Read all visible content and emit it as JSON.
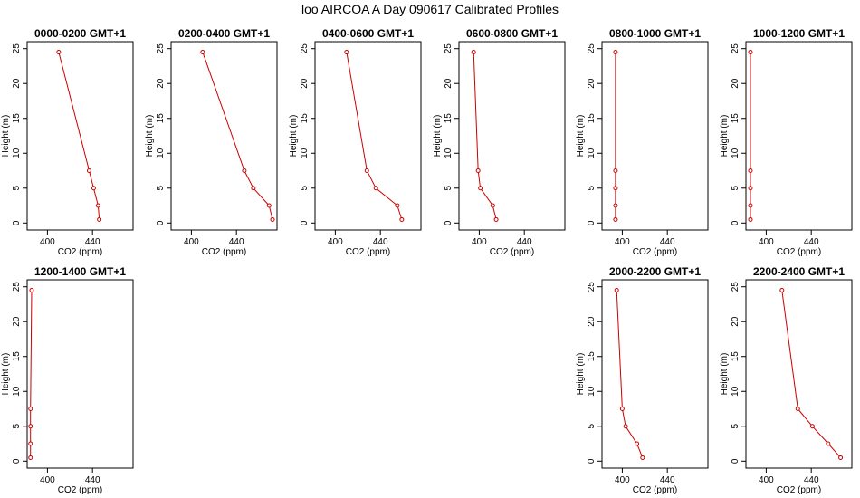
{
  "title": "loo AIRCOA A  Day 090617  Calibrated Profiles",
  "colors": {
    "line": "#cc0000",
    "axis": "#000000"
  },
  "chart_data": [
    {
      "type": "line",
      "title": "0000-0200 GMT+1",
      "xlabel": "CO2 (ppm)",
      "ylabel": "Height (m)",
      "xlim": [
        382,
        476
      ],
      "ylim": [
        -1,
        26
      ],
      "xticks": [
        400,
        440
      ],
      "yticks": [
        0,
        5,
        10,
        15,
        20,
        25
      ],
      "x": [
        410,
        437,
        441,
        445,
        446
      ],
      "y": [
        24.5,
        7.5,
        5,
        2.5,
        0.5
      ]
    },
    {
      "type": "line",
      "title": "0200-0400 GMT+1",
      "xlabel": "CO2 (ppm)",
      "ylabel": "Height (m)",
      "xlim": [
        382,
        476
      ],
      "ylim": [
        -1,
        26
      ],
      "xticks": [
        400,
        440
      ],
      "yticks": [
        0,
        5,
        10,
        15,
        20,
        25
      ],
      "x": [
        410,
        447,
        455,
        469,
        472
      ],
      "y": [
        24.5,
        7.5,
        5,
        2.5,
        0.5
      ]
    },
    {
      "type": "line",
      "title": "0400-0600 GMT+1",
      "xlabel": "CO2 (ppm)",
      "ylabel": "Height (m)",
      "xlim": [
        382,
        476
      ],
      "ylim": [
        -1,
        26
      ],
      "xticks": [
        400,
        440
      ],
      "yticks": [
        0,
        5,
        10,
        15,
        20,
        25
      ],
      "x": [
        410,
        428,
        436,
        455,
        459
      ],
      "y": [
        24.5,
        7.5,
        5,
        2.5,
        0.5
      ]
    },
    {
      "type": "line",
      "title": "0600-0800 GMT+1",
      "xlabel": "CO2 (ppm)",
      "ylabel": "Height (m)",
      "xlim": [
        382,
        476
      ],
      "ylim": [
        -1,
        26
      ],
      "xticks": [
        400,
        440
      ],
      "yticks": [
        0,
        5,
        10,
        15,
        20,
        25
      ],
      "x": [
        395,
        399,
        401,
        412,
        415
      ],
      "y": [
        24.5,
        7.5,
        5,
        2.5,
        0.5
      ]
    },
    {
      "type": "line",
      "title": "0800-1000 GMT+1",
      "xlabel": "CO2 (ppm)",
      "ylabel": "Height (m)",
      "xlim": [
        382,
        476
      ],
      "ylim": [
        -1,
        26
      ],
      "xticks": [
        400,
        440
      ],
      "yticks": [
        0,
        5,
        10,
        15,
        20,
        25
      ],
      "x": [
        394,
        394,
        394,
        394,
        394
      ],
      "y": [
        24.5,
        7.5,
        5,
        2.5,
        0.5
      ]
    },
    {
      "type": "line",
      "title": "1000-1200 GMT+1",
      "xlabel": "CO2 (ppm)",
      "ylabel": "Height (m)",
      "xlim": [
        382,
        476
      ],
      "ylim": [
        -1,
        26
      ],
      "xticks": [
        400,
        440
      ],
      "yticks": [
        0,
        5,
        10,
        15,
        20,
        25
      ],
      "x": [
        386,
        386,
        386,
        386,
        386
      ],
      "y": [
        24.5,
        7.5,
        5,
        2.5,
        0.5
      ]
    },
    {
      "type": "line",
      "title": "1200-1400 GMT+1",
      "xlabel": "CO2 (ppm)",
      "ylabel": "Height (m)",
      "xlim": [
        382,
        476
      ],
      "ylim": [
        -1,
        26
      ],
      "xticks": [
        400,
        440
      ],
      "yticks": [
        0,
        5,
        10,
        15,
        20,
        25
      ],
      "x": [
        386,
        385,
        385,
        385,
        385
      ],
      "y": [
        24.5,
        7.5,
        5,
        2.5,
        0.5
      ]
    },
    {
      "type": "line",
      "title": "2000-2200 GMT+1",
      "xlabel": "CO2 (ppm)",
      "ylabel": "Height (m)",
      "xlim": [
        382,
        476
      ],
      "ylim": [
        -1,
        26
      ],
      "xticks": [
        400,
        440
      ],
      "yticks": [
        0,
        5,
        10,
        15,
        20,
        25
      ],
      "x": [
        395,
        400,
        403,
        413,
        418
      ],
      "y": [
        24.5,
        7.5,
        5,
        2.5,
        0.5
      ]
    },
    {
      "type": "line",
      "title": "2200-2400 GMT+1",
      "xlabel": "CO2 (ppm)",
      "ylabel": "Height (m)",
      "xlim": [
        382,
        476
      ],
      "ylim": [
        -1,
        26
      ],
      "xticks": [
        400,
        440
      ],
      "yticks": [
        0,
        5,
        10,
        15,
        20,
        25
      ],
      "x": [
        414,
        428,
        441,
        455,
        466
      ],
      "y": [
        24.5,
        7.5,
        5,
        2.5,
        0.5
      ]
    }
  ]
}
